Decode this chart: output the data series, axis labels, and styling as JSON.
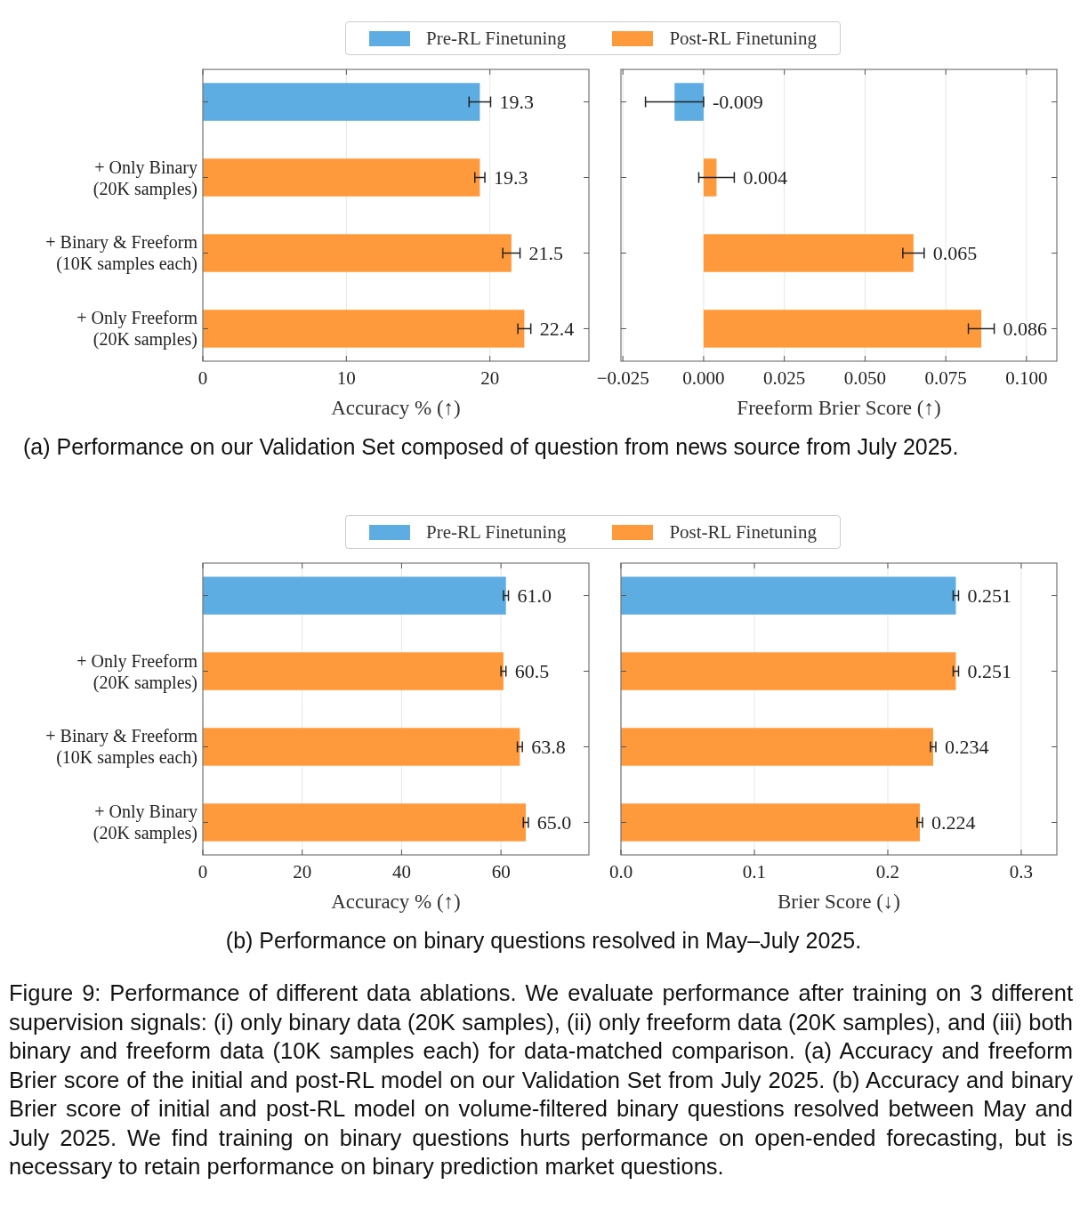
{
  "chart_data": [
    {
      "type": "bar",
      "orientation": "horizontal",
      "categories": [
        null,
        "+ Only Binary\n(20K samples)",
        "+ Binary & Freeform\n(10K samples each)",
        "+ Only Freeform\n(20K samples)"
      ],
      "series": [
        {
          "name": "Pre-RL Finetuning",
          "color": "#5dade2",
          "values": [
            19.3,
            null,
            null,
            null
          ],
          "errors": [
            0.75,
            null,
            null,
            null
          ],
          "value_labels": [
            "19.3",
            null,
            null,
            null
          ]
        },
        {
          "name": "Post-RL Finetuning",
          "color": "#ff9a3c",
          "values": [
            null,
            19.3,
            21.5,
            22.4
          ],
          "errors": [
            null,
            0.35,
            0.6,
            0.45
          ],
          "value_labels": [
            null,
            "19.3",
            "21.5",
            "22.4"
          ]
        }
      ],
      "xlim": [
        0,
        26.9
      ],
      "xticks": [
        0,
        10,
        20
      ],
      "xlabel": "Accuracy % (↑)",
      "grid": "x",
      "legend": "top",
      "annotations": [
        "(a) Performance on our Validation Set composed of question from news source from July 2025."
      ]
    },
    {
      "type": "bar",
      "orientation": "horizontal",
      "categories": [
        null,
        null,
        null,
        null
      ],
      "tick_labels": "x",
      "series": [
        {
          "color": "#5dade2",
          "values": [
            -0.009,
            null,
            null,
            null
          ],
          "errors": [
            0.009,
            null,
            null,
            null
          ],
          "value_labels": [
            "-0.009",
            null,
            null,
            null
          ]
        },
        {
          "color": "#ff9a3c",
          "values": [
            null,
            0.004,
            0.065,
            0.086
          ],
          "errors": [
            null,
            0.0055,
            0.0033,
            0.004
          ],
          "value_labels": [
            null,
            "0.004",
            "0.065",
            "0.086"
          ]
        }
      ],
      "xlim": [
        -0.0256,
        0.1094
      ],
      "xticks": [
        {
          "value": -0.025,
          "label": "−0.025"
        },
        {
          "value": 0,
          "label": "0.000"
        },
        {
          "value": 0.025,
          "label": "0.025"
        },
        {
          "value": 0.05,
          "label": "0.050"
        },
        {
          "value": 0.075,
          "label": "0.075"
        },
        {
          "value": 0.1,
          "label": "0.100"
        }
      ],
      "xlabel": "Freeform Brier Score (↑)",
      "grid": "x"
    },
    {
      "type": "bar",
      "orientation": "horizontal",
      "categories": [
        null,
        "+ Only Freeform\n(20K samples)",
        "+ Binary & Freeform\n(10K samples each)",
        "+ Only Binary\n(20K samples)"
      ],
      "series": [
        {
          "name": "Pre-RL Finetuning",
          "color": "#5dade2",
          "values": [
            61.0,
            null,
            null,
            null
          ],
          "errors": [
            0.5,
            null,
            null,
            null
          ],
          "value_labels": [
            "61.0",
            null,
            null,
            null
          ]
        },
        {
          "name": "Post-RL Finetuning",
          "color": "#ff9a3c",
          "values": [
            null,
            60.5,
            63.8,
            65.0
          ],
          "errors": [
            null,
            0.5,
            0.5,
            0.5
          ],
          "value_labels": [
            null,
            "60.5",
            "63.8",
            "65.0"
          ]
        }
      ],
      "xlim": [
        0,
        77.7
      ],
      "xticks": [
        0,
        20,
        40,
        60
      ],
      "xlabel": "Accuracy % (↑)",
      "grid": "x",
      "legend": "top",
      "annotations": [
        "(b) Performance on binary questions resolved in May–July 2025."
      ]
    },
    {
      "type": "bar",
      "orientation": "horizontal",
      "categories": [
        null,
        null,
        null,
        null
      ],
      "tick_labels": "x",
      "series": [
        {
          "color": "#5dade2",
          "values": [
            0.251,
            null,
            null,
            null
          ],
          "errors": [
            0.002,
            null,
            null,
            null
          ],
          "value_labels": [
            "0.251",
            null,
            null,
            null
          ]
        },
        {
          "color": "#ff9a3c",
          "values": [
            null,
            0.251,
            0.234,
            0.224
          ],
          "errors": [
            null,
            0.002,
            0.002,
            0.002
          ],
          "value_labels": [
            null,
            "0.251",
            "0.234",
            "0.224"
          ]
        }
      ],
      "xlim": [
        0,
        0.3267
      ],
      "xticks": [
        {
          "value": 0,
          "label": "0.0"
        },
        {
          "value": 0.1,
          "label": "0.1"
        },
        {
          "value": 0.2,
          "label": "0.2"
        },
        {
          "value": 0.3,
          "label": "0.3"
        }
      ],
      "xlabel": "Brier Score (↓)",
      "grid": "x",
      "annotations": [
        "Figure 9: Performance of different data ablations. We evaluate performance after training on 3 different supervision signals: (i) only binary data (20K samples), (ii) only freeform data (20K samples), and (iii) both binary and freeform data (10K samples each) for data-matched comparison. (a) Accuracy and freeform Brier score of the initial and post-RL model on our Validation Set from July 2025. (b) Accuracy and binary Brier score of initial and post-RL model on volume-filtered binary questions resolved between May and July 2025. We find training on binary questions hurts performance on open-ended forecasting, but is necessary to retain performance on binary prediction market questions."
      ]
    }
  ]
}
